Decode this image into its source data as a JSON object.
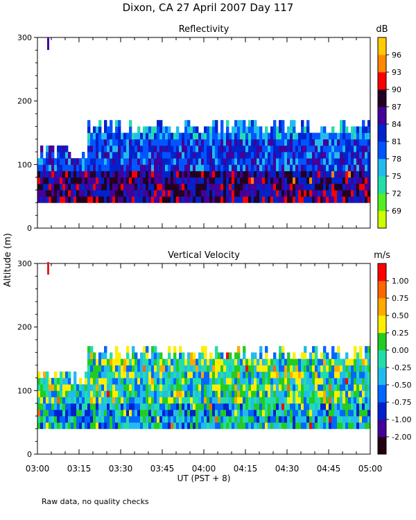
{
  "title": "Dixon, CA 27 April 2007  Day 117",
  "ylabel": "Altitude (m)",
  "xlabel": "UT  (PST + 8)",
  "footnote": "Raw data, no quality checks",
  "chart_data": [
    {
      "type": "heatmap",
      "title": "Reflectivity",
      "ylim": [
        0,
        300
      ],
      "yticks": [
        "0",
        "100",
        "200",
        "300"
      ],
      "xticks": [
        "03:00",
        "03:15",
        "03:30",
        "03:45",
        "04:00",
        "04:15",
        "04:30",
        "04:45",
        "05:00"
      ],
      "x_range": [
        "03:00",
        "05:00"
      ],
      "data_altitude_range": [
        40,
        180
      ],
      "colorbar": {
        "unit": "dB",
        "labels": [
          "69",
          "72",
          "75",
          "78",
          "81",
          "84",
          "87",
          "90",
          "93",
          "96"
        ],
        "colors": [
          "#ccff00",
          "#55ee22",
          "#22ddaa",
          "#22bbee",
          "#0055ff",
          "#0022cc",
          "#440099",
          "#220022",
          "#ff0000",
          "#ff8800",
          "#ffcc00"
        ]
      },
      "marker_color": "#440099"
    },
    {
      "type": "heatmap",
      "title": "Vertical Velocity",
      "ylim": [
        0,
        300
      ],
      "yticks": [
        "0",
        "100",
        "200",
        "300"
      ],
      "xticks": [
        "03:00",
        "03:15",
        "03:30",
        "03:45",
        "04:00",
        "04:15",
        "04:30",
        "04:45",
        "05:00"
      ],
      "x_range": [
        "03:00",
        "05:00"
      ],
      "data_altitude_range": [
        40,
        180
      ],
      "colorbar": {
        "unit": "m/s",
        "labels": [
          "-2.00",
          "-1.00",
          "-0.75",
          "-0.50",
          "-0.25",
          "0.00",
          "0.25",
          "0.50",
          "0.75",
          "1.00"
        ],
        "colors": [
          "#220011",
          "#440099",
          "#0022cc",
          "#0066ff",
          "#22bbee",
          "#22ddaa",
          "#22cc22",
          "#ffee00",
          "#ffaa00",
          "#ff6600",
          "#ff0000"
        ]
      },
      "marker_color": "#dd2222"
    }
  ]
}
